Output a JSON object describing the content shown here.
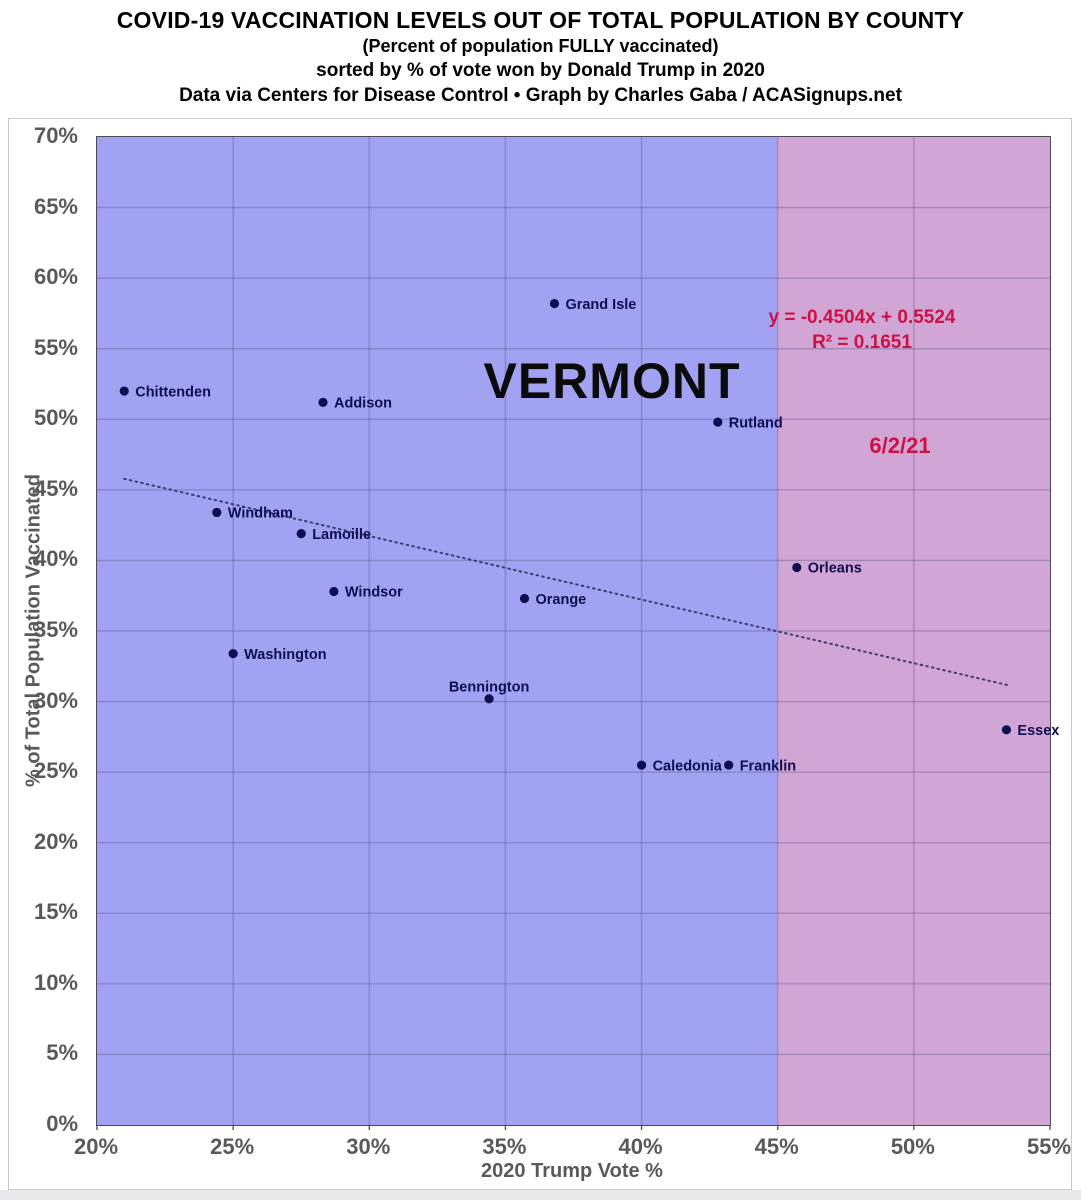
{
  "header": {
    "title": "COVID-19 VACCINATION LEVELS OUT OF TOTAL POPULATION BY COUNTY",
    "subtitle1": "(Percent of population FULLY vaccinated)",
    "subtitle2": "sorted by % of vote won by Donald Trump in 2020",
    "subtitle3": "Data via Centers for Disease Control • Graph by Charles Gaba / ACASignups.net"
  },
  "chart_data": {
    "type": "scatter",
    "state_label": "VERMONT",
    "date_label": "6/2/21",
    "xlabel": "2020 Trump Vote %",
    "ylabel": "% of Total Population Vaccinated",
    "xlim": [
      20,
      55
    ],
    "ylim": [
      0,
      70
    ],
    "tick_step_x": 5,
    "tick_step_y": 5,
    "grid": true,
    "regions": [
      {
        "name": "lower-trump-vote-region",
        "x_from": 20,
        "x_to": 45,
        "color": "#a2a2f2"
      },
      {
        "name": "higher-trump-vote-region",
        "x_from": 45,
        "x_to": 55,
        "color": "#d2a6d4"
      }
    ],
    "trendline": {
      "equation_label": "y = -0.4504x + 0.5524",
      "r_squared_label": "R² = 0.1651",
      "slope": -0.4504,
      "intercept": 0.5524,
      "x_start": 21.0,
      "x_end": 53.5
    },
    "points": [
      {
        "county": "Chittenden",
        "x": 21.0,
        "y": 52.0,
        "label_position": "right"
      },
      {
        "county": "Addison",
        "x": 28.3,
        "y": 51.2,
        "label_position": "right"
      },
      {
        "county": "Grand Isle",
        "x": 36.8,
        "y": 58.2,
        "label_position": "right"
      },
      {
        "county": "Rutland",
        "x": 42.8,
        "y": 49.8,
        "label_position": "right"
      },
      {
        "county": "Windham",
        "x": 24.4,
        "y": 43.4,
        "label_position": "right"
      },
      {
        "county": "Lamoille",
        "x": 27.5,
        "y": 41.9,
        "label_position": "right"
      },
      {
        "county": "Windsor",
        "x": 28.7,
        "y": 37.8,
        "label_position": "right"
      },
      {
        "county": "Orange",
        "x": 35.7,
        "y": 37.3,
        "label_position": "right"
      },
      {
        "county": "Washington",
        "x": 25.0,
        "y": 33.4,
        "label_position": "right"
      },
      {
        "county": "Bennington",
        "x": 34.4,
        "y": 30.2,
        "label_position": "above"
      },
      {
        "county": "Caledonia",
        "x": 40.0,
        "y": 25.5,
        "label_position": "right"
      },
      {
        "county": "Franklin",
        "x": 43.2,
        "y": 25.5,
        "label_position": "right"
      },
      {
        "county": "Orleans",
        "x": 45.7,
        "y": 39.5,
        "label_position": "right"
      },
      {
        "county": "Essex",
        "x": 53.4,
        "y": 28.0,
        "label_position": "right"
      }
    ]
  },
  "colors": {
    "point": "#0e0e52",
    "county_label": "#0e0e52",
    "gridline": "rgba(85,85,130,0.40)",
    "trendline": "#3c3c6e",
    "annotation_red": "#cc1144",
    "axis_text": "#595959"
  }
}
